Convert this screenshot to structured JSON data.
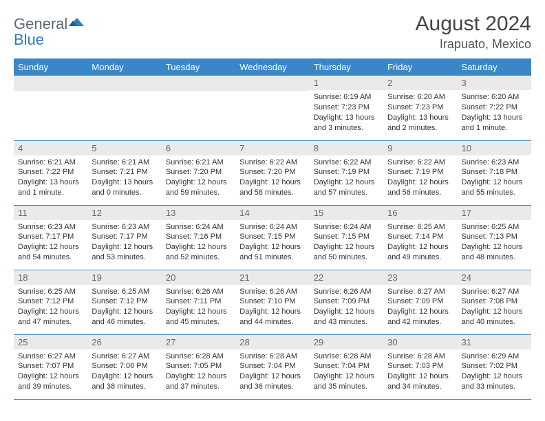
{
  "logo": {
    "word1": "General",
    "word2": "Blue"
  },
  "title": "August 2024",
  "location": "Irapuato, Mexico",
  "colors": {
    "header_bg": "#3a87c8",
    "header_text": "#ffffff",
    "daynum_bg": "#e9eaec",
    "border": "#3a87c8",
    "logo_gray": "#5a6a72",
    "logo_blue": "#2f7cbf"
  },
  "day_headers": [
    "Sunday",
    "Monday",
    "Tuesday",
    "Wednesday",
    "Thursday",
    "Friday",
    "Saturday"
  ],
  "weeks": [
    [
      {
        "n": "",
        "sr": "",
        "ss": "",
        "dl": ""
      },
      {
        "n": "",
        "sr": "",
        "ss": "",
        "dl": ""
      },
      {
        "n": "",
        "sr": "",
        "ss": "",
        "dl": ""
      },
      {
        "n": "",
        "sr": "",
        "ss": "",
        "dl": ""
      },
      {
        "n": "1",
        "sr": "Sunrise: 6:19 AM",
        "ss": "Sunset: 7:23 PM",
        "dl": "Daylight: 13 hours and 3 minutes."
      },
      {
        "n": "2",
        "sr": "Sunrise: 6:20 AM",
        "ss": "Sunset: 7:23 PM",
        "dl": "Daylight: 13 hours and 2 minutes."
      },
      {
        "n": "3",
        "sr": "Sunrise: 6:20 AM",
        "ss": "Sunset: 7:22 PM",
        "dl": "Daylight: 13 hours and 1 minute."
      }
    ],
    [
      {
        "n": "4",
        "sr": "Sunrise: 6:21 AM",
        "ss": "Sunset: 7:22 PM",
        "dl": "Daylight: 13 hours and 1 minute."
      },
      {
        "n": "5",
        "sr": "Sunrise: 6:21 AM",
        "ss": "Sunset: 7:21 PM",
        "dl": "Daylight: 13 hours and 0 minutes."
      },
      {
        "n": "6",
        "sr": "Sunrise: 6:21 AM",
        "ss": "Sunset: 7:20 PM",
        "dl": "Daylight: 12 hours and 59 minutes."
      },
      {
        "n": "7",
        "sr": "Sunrise: 6:22 AM",
        "ss": "Sunset: 7:20 PM",
        "dl": "Daylight: 12 hours and 58 minutes."
      },
      {
        "n": "8",
        "sr": "Sunrise: 6:22 AM",
        "ss": "Sunset: 7:19 PM",
        "dl": "Daylight: 12 hours and 57 minutes."
      },
      {
        "n": "9",
        "sr": "Sunrise: 6:22 AM",
        "ss": "Sunset: 7:19 PM",
        "dl": "Daylight: 12 hours and 56 minutes."
      },
      {
        "n": "10",
        "sr": "Sunrise: 6:23 AM",
        "ss": "Sunset: 7:18 PM",
        "dl": "Daylight: 12 hours and 55 minutes."
      }
    ],
    [
      {
        "n": "11",
        "sr": "Sunrise: 6:23 AM",
        "ss": "Sunset: 7:17 PM",
        "dl": "Daylight: 12 hours and 54 minutes."
      },
      {
        "n": "12",
        "sr": "Sunrise: 6:23 AM",
        "ss": "Sunset: 7:17 PM",
        "dl": "Daylight: 12 hours and 53 minutes."
      },
      {
        "n": "13",
        "sr": "Sunrise: 6:24 AM",
        "ss": "Sunset: 7:16 PM",
        "dl": "Daylight: 12 hours and 52 minutes."
      },
      {
        "n": "14",
        "sr": "Sunrise: 6:24 AM",
        "ss": "Sunset: 7:15 PM",
        "dl": "Daylight: 12 hours and 51 minutes."
      },
      {
        "n": "15",
        "sr": "Sunrise: 6:24 AM",
        "ss": "Sunset: 7:15 PM",
        "dl": "Daylight: 12 hours and 50 minutes."
      },
      {
        "n": "16",
        "sr": "Sunrise: 6:25 AM",
        "ss": "Sunset: 7:14 PM",
        "dl": "Daylight: 12 hours and 49 minutes."
      },
      {
        "n": "17",
        "sr": "Sunrise: 6:25 AM",
        "ss": "Sunset: 7:13 PM",
        "dl": "Daylight: 12 hours and 48 minutes."
      }
    ],
    [
      {
        "n": "18",
        "sr": "Sunrise: 6:25 AM",
        "ss": "Sunset: 7:12 PM",
        "dl": "Daylight: 12 hours and 47 minutes."
      },
      {
        "n": "19",
        "sr": "Sunrise: 6:25 AM",
        "ss": "Sunset: 7:12 PM",
        "dl": "Daylight: 12 hours and 46 minutes."
      },
      {
        "n": "20",
        "sr": "Sunrise: 6:26 AM",
        "ss": "Sunset: 7:11 PM",
        "dl": "Daylight: 12 hours and 45 minutes."
      },
      {
        "n": "21",
        "sr": "Sunrise: 6:26 AM",
        "ss": "Sunset: 7:10 PM",
        "dl": "Daylight: 12 hours and 44 minutes."
      },
      {
        "n": "22",
        "sr": "Sunrise: 6:26 AM",
        "ss": "Sunset: 7:09 PM",
        "dl": "Daylight: 12 hours and 43 minutes."
      },
      {
        "n": "23",
        "sr": "Sunrise: 6:27 AM",
        "ss": "Sunset: 7:09 PM",
        "dl": "Daylight: 12 hours and 42 minutes."
      },
      {
        "n": "24",
        "sr": "Sunrise: 6:27 AM",
        "ss": "Sunset: 7:08 PM",
        "dl": "Daylight: 12 hours and 40 minutes."
      }
    ],
    [
      {
        "n": "25",
        "sr": "Sunrise: 6:27 AM",
        "ss": "Sunset: 7:07 PM",
        "dl": "Daylight: 12 hours and 39 minutes."
      },
      {
        "n": "26",
        "sr": "Sunrise: 6:27 AM",
        "ss": "Sunset: 7:06 PM",
        "dl": "Daylight: 12 hours and 38 minutes."
      },
      {
        "n": "27",
        "sr": "Sunrise: 6:28 AM",
        "ss": "Sunset: 7:05 PM",
        "dl": "Daylight: 12 hours and 37 minutes."
      },
      {
        "n": "28",
        "sr": "Sunrise: 6:28 AM",
        "ss": "Sunset: 7:04 PM",
        "dl": "Daylight: 12 hours and 36 minutes."
      },
      {
        "n": "29",
        "sr": "Sunrise: 6:28 AM",
        "ss": "Sunset: 7:04 PM",
        "dl": "Daylight: 12 hours and 35 minutes."
      },
      {
        "n": "30",
        "sr": "Sunrise: 6:28 AM",
        "ss": "Sunset: 7:03 PM",
        "dl": "Daylight: 12 hours and 34 minutes."
      },
      {
        "n": "31",
        "sr": "Sunrise: 6:29 AM",
        "ss": "Sunset: 7:02 PM",
        "dl": "Daylight: 12 hours and 33 minutes."
      }
    ]
  ]
}
